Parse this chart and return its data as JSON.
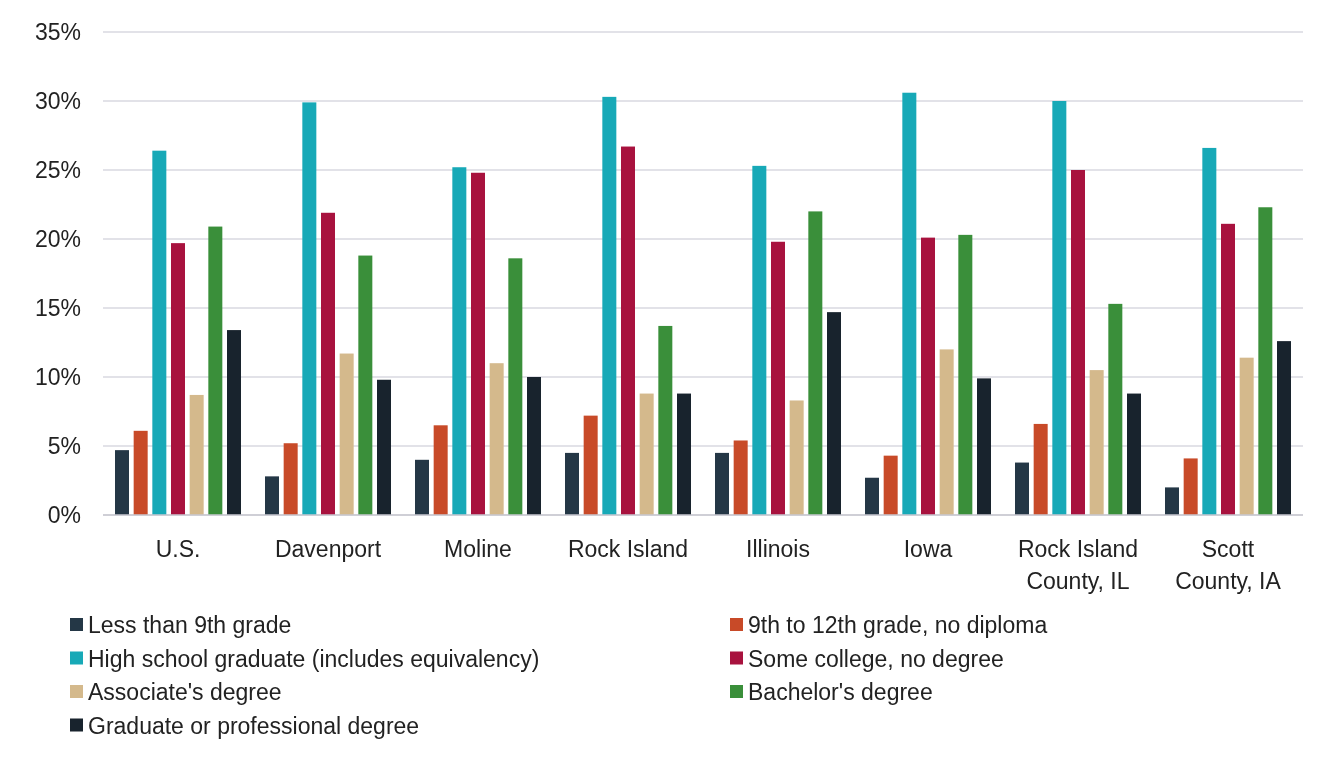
{
  "chart_data": {
    "type": "bar",
    "categories": [
      "U.S.",
      "Davenport",
      "Moline",
      "Rock Island",
      "Illinois",
      "Iowa",
      "Rock Island County, IL",
      "Scott County, IA"
    ],
    "series": [
      {
        "name": "Less than 9th grade",
        "color": "#243746",
        "values": [
          4.7,
          2.8,
          4.0,
          4.5,
          4.5,
          2.7,
          3.8,
          2.0
        ]
      },
      {
        "name": "9th to 12th grade, no diploma",
        "color": "#c84a28",
        "values": [
          6.1,
          5.2,
          6.5,
          7.2,
          5.4,
          4.3,
          6.6,
          4.1
        ]
      },
      {
        "name": "High school graduate (includes equivalency)",
        "color": "#17a9b7",
        "values": [
          26.4,
          29.9,
          25.2,
          30.3,
          25.3,
          30.6,
          30.0,
          26.6
        ]
      },
      {
        "name": "Some college, no degree",
        "color": "#a8123e",
        "values": [
          19.7,
          21.9,
          24.8,
          26.7,
          19.8,
          20.1,
          25.0,
          21.1
        ]
      },
      {
        "name": "Associate's degree",
        "color": "#d4b98c",
        "values": [
          8.7,
          11.7,
          11.0,
          8.8,
          8.3,
          12.0,
          10.5,
          11.4
        ]
      },
      {
        "name": "Bachelor's degree",
        "color": "#3a8f3a",
        "values": [
          20.9,
          18.8,
          18.6,
          13.7,
          22.0,
          20.3,
          15.3,
          22.3
        ]
      },
      {
        "name": "Graduate or professional degree",
        "color": "#18232d",
        "values": [
          13.4,
          9.8,
          10.0,
          8.8,
          14.7,
          9.9,
          8.8,
          12.6
        ]
      }
    ],
    "ylim": [
      0,
      35
    ],
    "yticks": [
      {
        "value": 0,
        "label": "0%"
      },
      {
        "value": 5,
        "label": "5%"
      },
      {
        "value": 10,
        "label": "10%"
      },
      {
        "value": 15,
        "label": "15%"
      },
      {
        "value": 20,
        "label": "20%"
      },
      {
        "value": 25,
        "label": "25%"
      },
      {
        "value": 30,
        "label": "30%"
      },
      {
        "value": 35,
        "label": "35%"
      }
    ],
    "grid": "y",
    "legend": "bottom"
  }
}
